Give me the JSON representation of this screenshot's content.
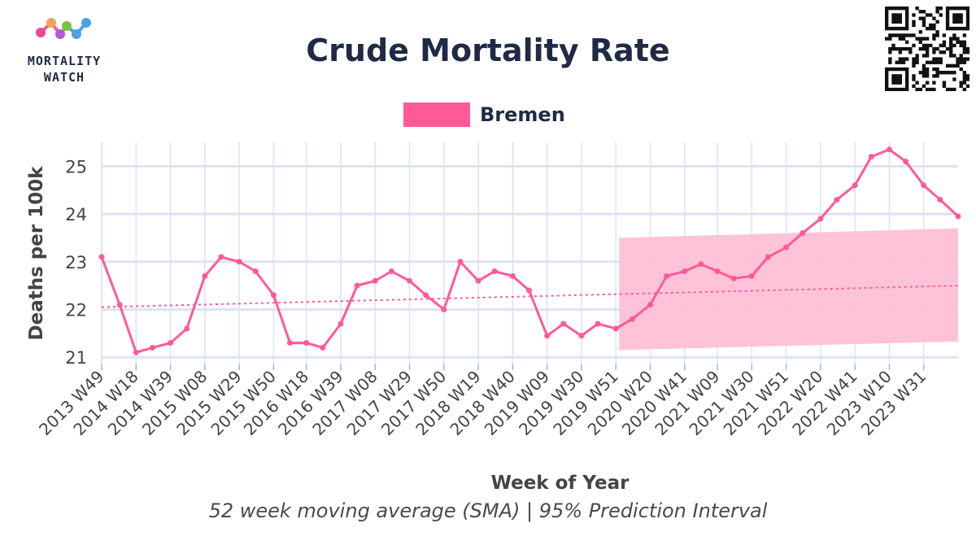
{
  "logo": {
    "line1": "MORTALITY",
    "line2": "WATCH"
  },
  "chart_data": {
    "type": "line",
    "title": "Crude Mortality Rate",
    "subtitle": "52 week moving average (SMA) | 95% Prediction Interval",
    "xlabel": "Week of Year",
    "ylabel": "Deaths per 100k",
    "ylim": [
      20.85,
      25.5
    ],
    "yticks": [
      21,
      22,
      23,
      24,
      25
    ],
    "grid": true,
    "legend_position": "top-center",
    "xticks": [
      "2013 W49",
      "2014 W18",
      "2014 W39",
      "2015 W08",
      "2015 W29",
      "2015 W50",
      "2016 W18",
      "2016 W39",
      "2017 W08",
      "2017 W29",
      "2017 W50",
      "2018 W19",
      "2018 W40",
      "2019 W09",
      "2019 W30",
      "2019 W51",
      "2020 W20",
      "2020 W41",
      "2021 W09",
      "2021 W30",
      "2021 W51",
      "2022 W20",
      "2022 W41",
      "2023 W10",
      "2023 W31"
    ],
    "series": [
      {
        "name": "Bremen",
        "color": "#ff5a96",
        "x": [
          "2013 W49",
          "2014 W08",
          "2014 W18",
          "2014 W28",
          "2014 W39",
          "2014 W49",
          "2015 W08",
          "2015 W18",
          "2015 W29",
          "2015 W39",
          "2015 W50",
          "2016 W08",
          "2016 W18",
          "2016 W28",
          "2016 W39",
          "2016 W49",
          "2017 W08",
          "2017 W18",
          "2017 W29",
          "2017 W39",
          "2017 W50",
          "2018 W08",
          "2018 W19",
          "2018 W29",
          "2018 W40",
          "2018 W50",
          "2019 W09",
          "2019 W19",
          "2019 W30",
          "2019 W40",
          "2019 W51",
          "2020 W09",
          "2020 W20",
          "2020 W30",
          "2020 W41",
          "2020 W51",
          "2021 W09",
          "2021 W19",
          "2021 W30",
          "2021 W40",
          "2021 W51",
          "2022 W09",
          "2022 W20",
          "2022 W30",
          "2022 W41",
          "2022 W51",
          "2023 W10",
          "2023 W20",
          "2023 W31",
          "2023 W41",
          "2023 W52"
        ],
        "values": [
          23.1,
          22.1,
          21.1,
          21.2,
          21.3,
          21.6,
          22.7,
          23.1,
          23.0,
          22.8,
          22.3,
          21.3,
          21.3,
          21.2,
          21.7,
          22.5,
          22.6,
          22.8,
          22.6,
          22.3,
          22.0,
          23.0,
          22.6,
          22.8,
          22.7,
          22.4,
          21.45,
          21.7,
          21.45,
          21.7,
          21.6,
          21.8,
          22.1,
          22.7,
          22.8,
          22.95,
          22.8,
          22.65,
          22.7,
          23.1,
          23.3,
          23.6,
          23.9,
          24.3,
          24.6,
          25.2,
          25.35,
          25.1,
          24.6,
          24.3,
          23.95
        ]
      },
      {
        "name": "Baseline",
        "color": "#ff5a96",
        "line_style": "dotted",
        "x": [
          "2013 W49",
          "2023 W52"
        ],
        "values": [
          22.05,
          22.5
        ]
      }
    ],
    "prediction_interval": {
      "label": "95% Prediction Interval",
      "color": "#ffc0d6",
      "x": [
        "2020 W01",
        "2023 W52"
      ],
      "lower": [
        21.15,
        21.33
      ],
      "upper": [
        23.5,
        23.7
      ]
    }
  }
}
